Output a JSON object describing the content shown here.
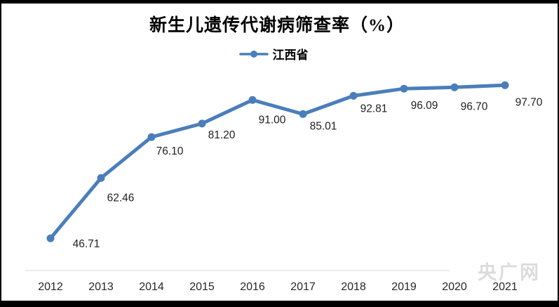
{
  "watermark": {
    "text": "央广网"
  },
  "chart": {
    "title": "新生儿遗传代谢病筛查率（%）",
    "legend_label": "江西省",
    "colors": {
      "line": "#4a7ebb",
      "marker": "#4a7ebb",
      "axis_line": "#d9d9d9",
      "data_label_text": "#1f1f1f",
      "tick_label_text": "#262626",
      "frame": "#000000",
      "watermark": "#dcdcdc"
    }
  },
  "chart_data": {
    "type": "line",
    "title": "新生儿遗传代谢病筛查率（%）",
    "categories": [
      "2012",
      "2013",
      "2014",
      "2015",
      "2016",
      "2017",
      "2018",
      "2019",
      "2020",
      "2021"
    ],
    "series": [
      {
        "name": "江西省",
        "color": "#4a7ebb",
        "values": [
          46.71,
          62.46,
          76.1,
          81.2,
          91.0,
          85.01,
          92.81,
          96.09,
          96.7,
          97.7
        ]
      }
    ],
    "data_labels": [
      "46.71",
      "62.46",
      "76.10",
      "81.20",
      "91.00",
      "85.01",
      "92.81",
      "96.09",
      "96.70",
      "97.70"
    ],
    "xlabel": "",
    "ylabel": "",
    "grid": false,
    "y_axis_visible": false,
    "x_axis_line": true,
    "y_scale_hint": "log-like spacing",
    "marker": "circle",
    "legend_position": "top-center"
  }
}
